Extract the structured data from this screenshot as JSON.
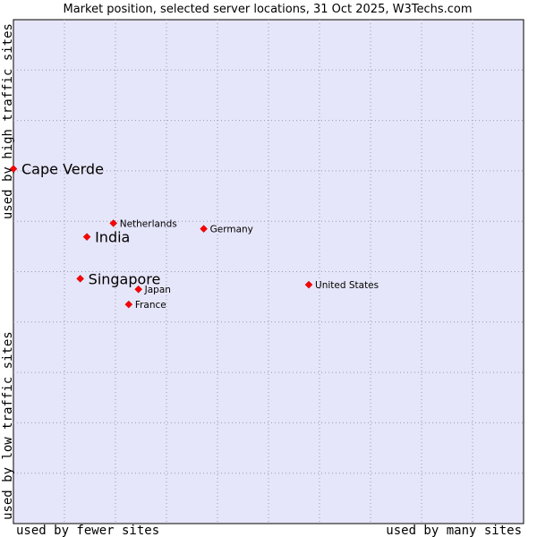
{
  "chart_data": {
    "type": "scatter",
    "title": "Market position, selected server locations, 31 Oct 2025, W3Techs.com",
    "xlabel_low": "used by fewer sites",
    "xlabel_high": "used by many sites",
    "ylabel_low": "used by low traffic sites",
    "ylabel_high": "used by high traffic sites",
    "xlim": [
      0,
      100
    ],
    "ylim": [
      0,
      100
    ],
    "grid": true,
    "colors": {
      "plot_bg": "#e6e6fa",
      "grid": "#9a9ab0",
      "marker": "#ff0000",
      "marker_edge": "#aa0000"
    },
    "points": [
      {
        "name": "Cape Verde",
        "x": 0.0,
        "y": 70.4,
        "emphasis": true
      },
      {
        "name": "Netherlands",
        "x": 19.6,
        "y": 59.6,
        "emphasis": false
      },
      {
        "name": "Germany",
        "x": 37.3,
        "y": 58.5,
        "emphasis": false
      },
      {
        "name": "India",
        "x": 14.4,
        "y": 56.9,
        "emphasis": true
      },
      {
        "name": "Singapore",
        "x": 13.1,
        "y": 48.6,
        "emphasis": true
      },
      {
        "name": "Japan",
        "x": 24.5,
        "y": 46.5,
        "emphasis": false
      },
      {
        "name": "United States",
        "x": 57.9,
        "y": 47.4,
        "emphasis": false
      },
      {
        "name": "France",
        "x": 22.6,
        "y": 43.5,
        "emphasis": false
      }
    ]
  }
}
